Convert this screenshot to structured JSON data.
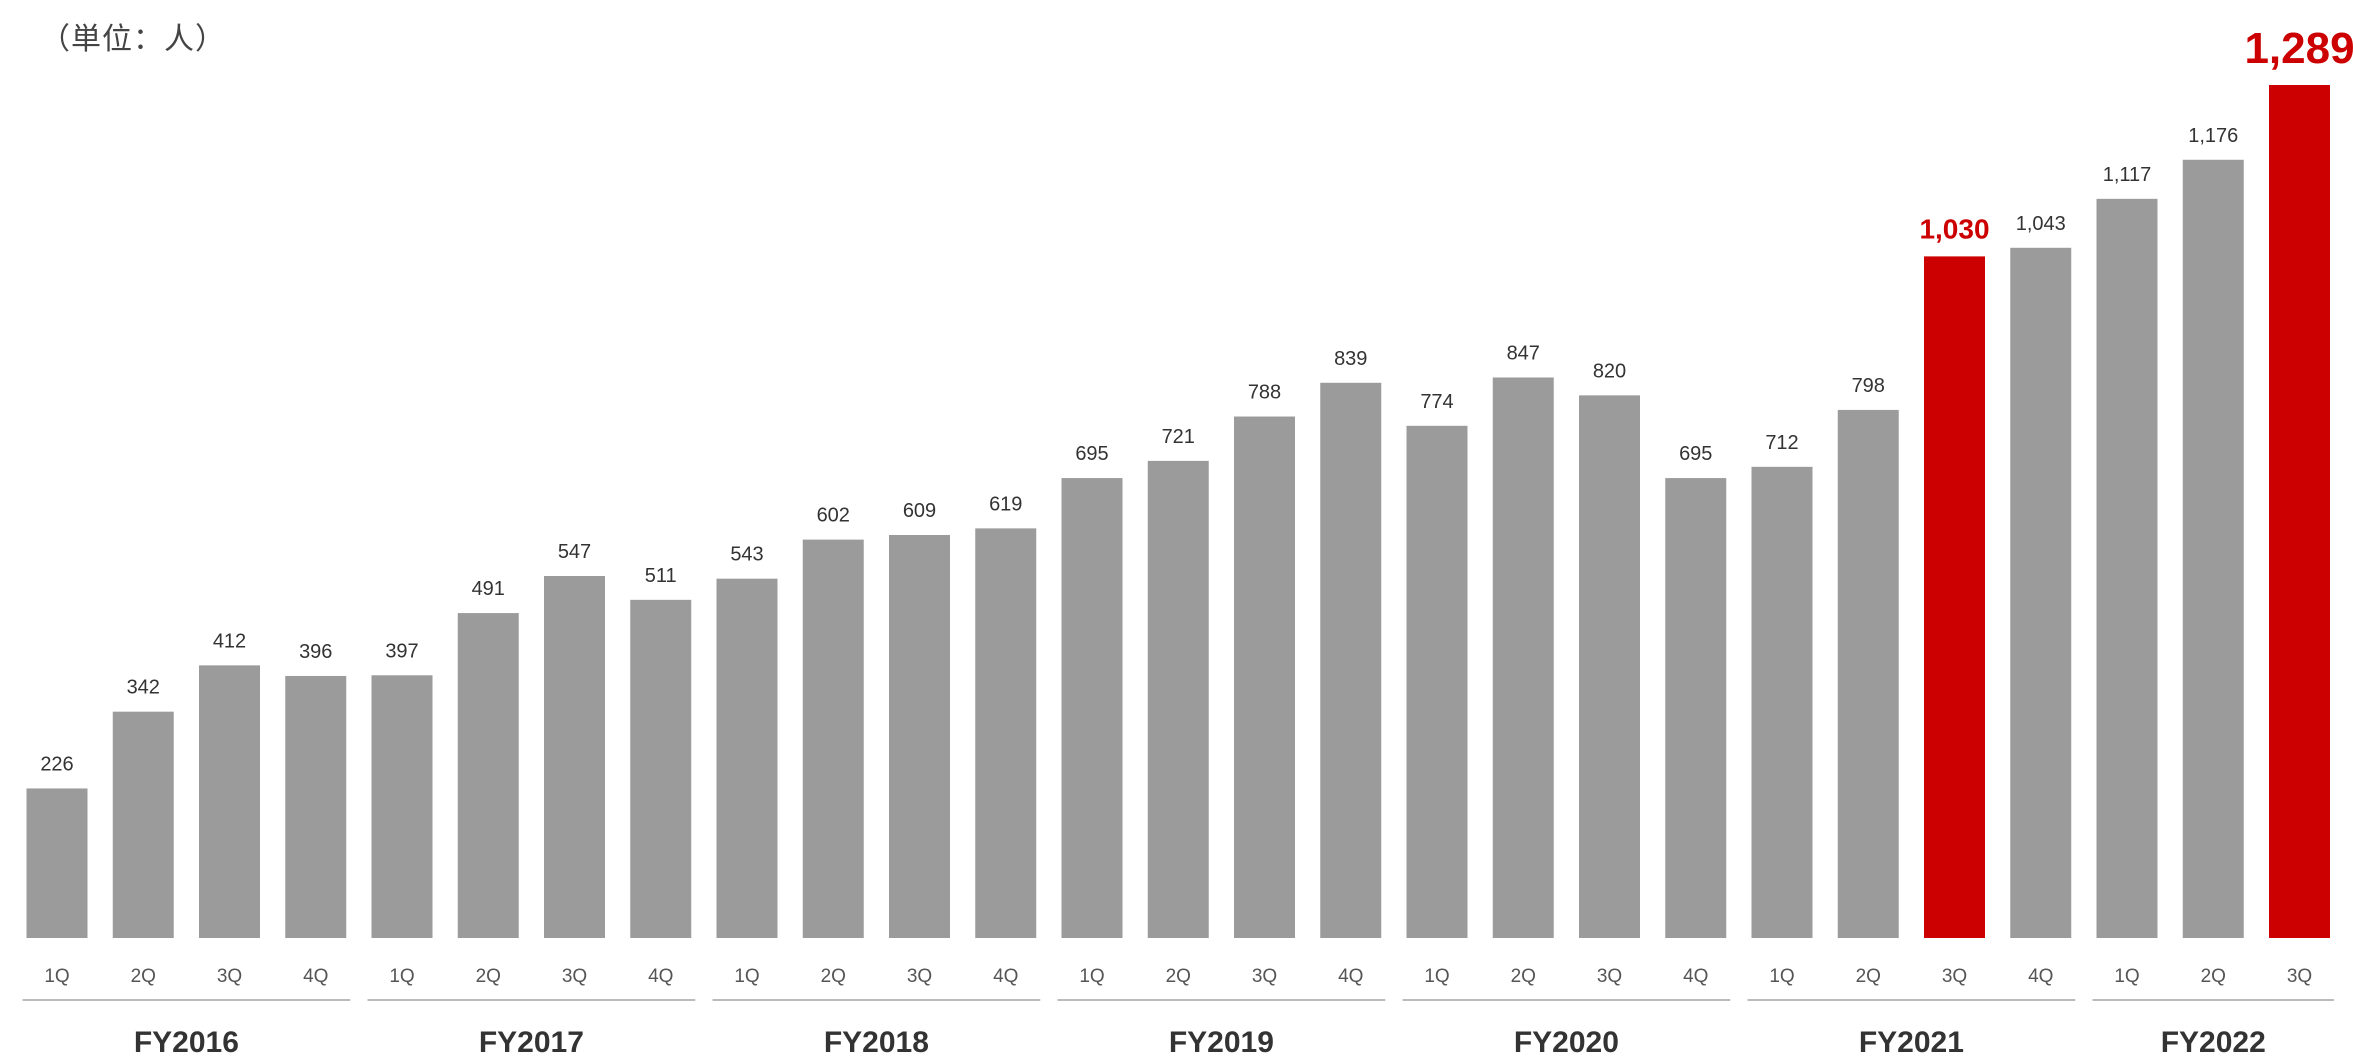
{
  "unit_label": "（単位：人）",
  "colors": {
    "bar_default": "#9b9b9b",
    "bar_highlight": "#cc0000",
    "label_default": "#333333",
    "label_highlight": "#cc0000",
    "axis_text": "#555555",
    "fiscal_year_text": "#333333",
    "fiscal_year_rule": "#bbbbbb"
  },
  "chart_data": {
    "type": "bar",
    "title": "",
    "xlabel": "",
    "ylabel": "",
    "ylim": [
      0,
      1300
    ],
    "grid": false,
    "categories": [
      "1Q",
      "2Q",
      "3Q",
      "4Q",
      "1Q",
      "2Q",
      "3Q",
      "4Q",
      "1Q",
      "2Q",
      "3Q",
      "4Q",
      "1Q",
      "2Q",
      "3Q",
      "4Q",
      "1Q",
      "2Q",
      "3Q",
      "4Q",
      "1Q",
      "2Q",
      "3Q",
      "4Q",
      "1Q",
      "2Q",
      "3Q"
    ],
    "values": [
      226,
      342,
      412,
      396,
      397,
      491,
      547,
      511,
      543,
      602,
      609,
      619,
      695,
      721,
      788,
      839,
      774,
      847,
      820,
      695,
      712,
      798,
      1030,
      1043,
      1117,
      1176,
      1289
    ],
    "value_labels": [
      "226",
      "342",
      "412",
      "396",
      "397",
      "491",
      "547",
      "511",
      "543",
      "602",
      "609",
      "619",
      "695",
      "721",
      "788",
      "839",
      "774",
      "847",
      "820",
      "695",
      "712",
      "798",
      "1,030",
      "1,043",
      "1,117",
      "1,176",
      "1,289"
    ],
    "highlighted_indices": [
      22,
      26
    ],
    "fiscal_years": [
      {
        "label": "FY2016",
        "quarters": 4
      },
      {
        "label": "FY2017",
        "quarters": 4
      },
      {
        "label": "FY2018",
        "quarters": 4
      },
      {
        "label": "FY2019",
        "quarters": 4
      },
      {
        "label": "FY2020",
        "quarters": 4
      },
      {
        "label": "FY2021",
        "quarters": 4
      },
      {
        "label": "FY2022",
        "quarters": 3
      }
    ]
  }
}
